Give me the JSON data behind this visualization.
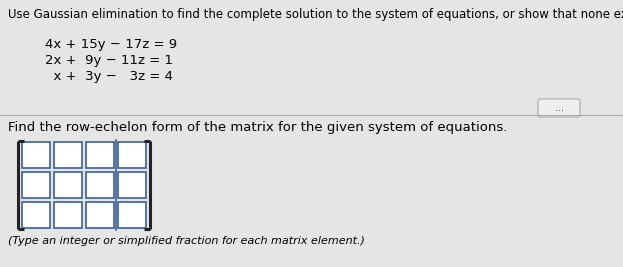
{
  "bg_color": "#e5e5e5",
  "white_bg": "#ffffff",
  "title_text": "Use Gaussian elimination to find the complete solution to the system of equations, or show that none exists.",
  "eq1": "4x + 15y − 17z = 9",
  "eq2": "2x +  9y − 11z = 1",
  "eq3": "  x +  3y −   3z = 4",
  "find_text": "Find the row-echelon form of the matrix for the given system of equations.",
  "note_text": "(Type an integer or simplified fraction for each matrix element.)",
  "matrix_rows": 3,
  "matrix_cols": 4,
  "augmented_col": 3,
  "dots_button": "...",
  "cell_color": "#ffffff",
  "cell_edge_color": "#3a5fa0",
  "bracket_color": "#222222",
  "sep_line_color": "#3a5fa0",
  "title_fontsize": 8.5,
  "body_fontsize": 9.5,
  "eq_fontsize": 9.5,
  "note_fontsize": 8.0
}
